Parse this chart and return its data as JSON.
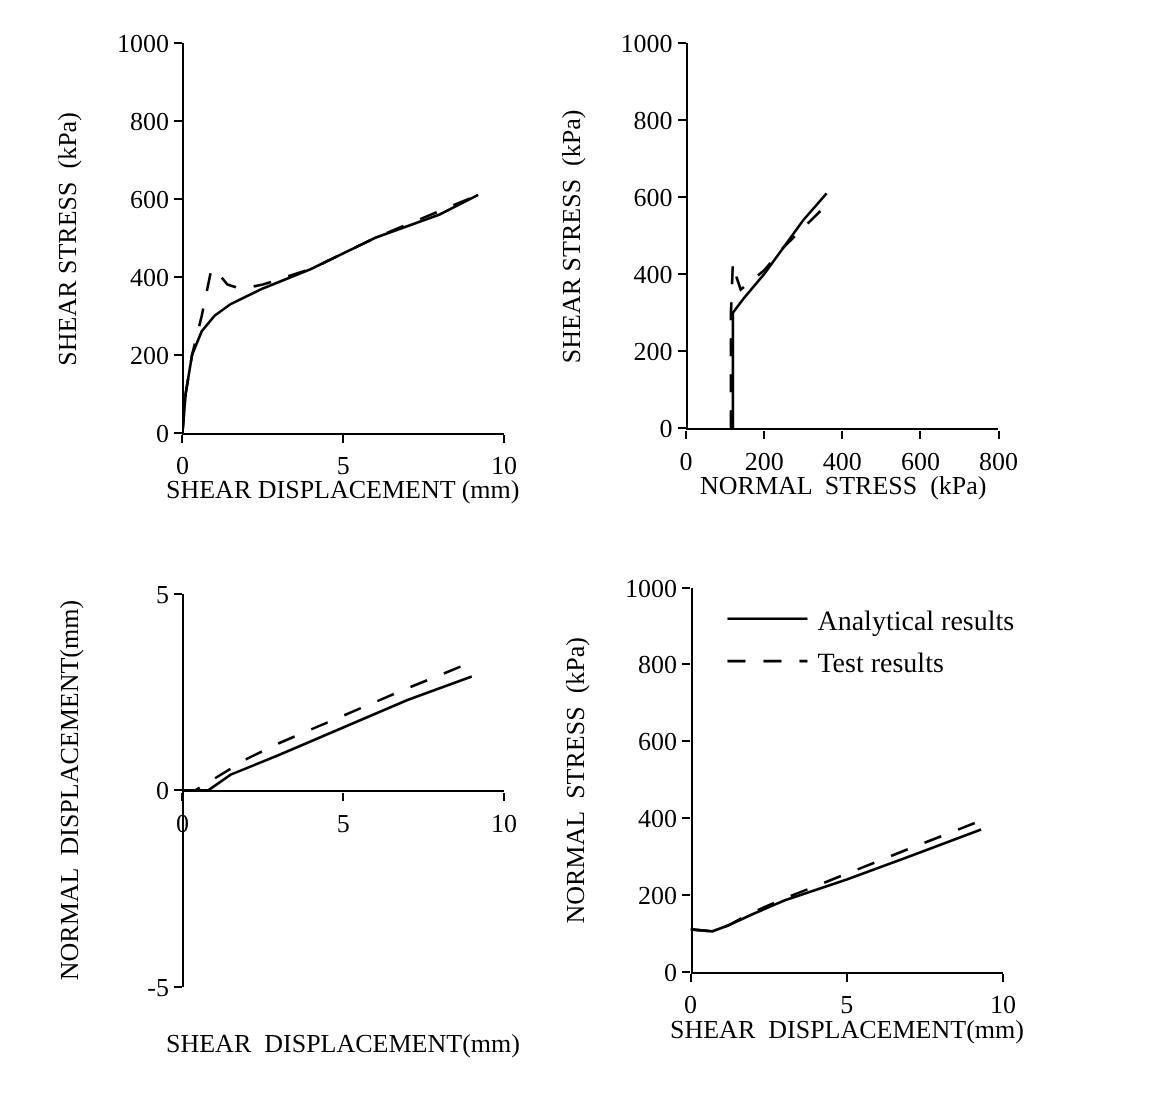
{
  "chart_data": [
    {
      "type": "line",
      "xlabel": "SHEAR DISPLACEMENT (mm)",
      "ylabel": "SHEAR STRESS  (kPa)",
      "xlim": [
        0,
        10
      ],
      "xticks": [
        0,
        5,
        10
      ],
      "ylim": [
        0,
        1000
      ],
      "yticks": [
        0,
        200,
        400,
        600,
        800,
        1000
      ],
      "legend": false,
      "series": [
        {
          "color": "#000000",
          "line_style": "solid",
          "x": [
            0,
            0.1,
            0.3,
            0.6,
            1,
            1.5,
            2.5,
            4,
            6,
            8,
            9.2
          ],
          "values": [
            0,
            100,
            200,
            260,
            300,
            330,
            370,
            420,
            500,
            560,
            610
          ]
        },
        {
          "color": "#000000",
          "line_style": "dashed",
          "x": [
            0,
            0.1,
            0.3,
            0.6,
            0.9,
            1.1,
            1.4,
            1.8,
            2.2,
            2.5,
            4,
            6,
            9.2
          ],
          "values": [
            0,
            100,
            200,
            300,
            420,
            410,
            380,
            370,
            375,
            380,
            420,
            500,
            610
          ]
        }
      ]
    },
    {
      "type": "line",
      "xlabel": "NORMAL  STRESS  (kPa)",
      "ylabel": "SHEAR STRESS  (kPa)",
      "xlim": [
        0,
        800
      ],
      "xticks": [
        0,
        200,
        400,
        600,
        800
      ],
      "ylim": [
        0,
        1000
      ],
      "yticks": [
        0,
        200,
        400,
        600,
        800,
        1000
      ],
      "legend": false,
      "series": [
        {
          "color": "#000000",
          "line_style": "solid",
          "x": [
            120,
            120,
            120,
            150,
            200,
            250,
            300,
            360
          ],
          "values": [
            0,
            200,
            300,
            340,
            400,
            470,
            540,
            610
          ]
        },
        {
          "color": "#000000",
          "line_style": "dashed",
          "x": [
            115,
            115,
            115,
            120,
            130,
            140,
            200,
            250,
            300,
            370
          ],
          "values": [
            0,
            200,
            300,
            430,
            390,
            360,
            410,
            470,
            520,
            590
          ]
        }
      ]
    },
    {
      "type": "line",
      "xlabel": "SHEAR  DISPLACEMENT(mm)",
      "ylabel": "NORMAL  DISPLACEMENT(mm)",
      "xlim": [
        0,
        10
      ],
      "xticks": [
        0,
        5,
        10
      ],
      "ylim": [
        -5,
        5
      ],
      "yticks": [
        -5,
        0,
        5
      ],
      "legend": false,
      "series": [
        {
          "color": "#000000",
          "line_style": "solid",
          "x": [
            0,
            0.8,
            1.5,
            3,
            5,
            7,
            9
          ],
          "values": [
            0,
            0,
            0.4,
            0.9,
            1.6,
            2.3,
            2.9
          ]
        },
        {
          "color": "#000000",
          "line_style": "dashed",
          "x": [
            0,
            0.4,
            1,
            2,
            3,
            5,
            7,
            8.8
          ],
          "values": [
            0,
            0,
            0.3,
            0.8,
            1.2,
            1.9,
            2.6,
            3.2
          ]
        }
      ]
    },
    {
      "type": "line",
      "xlabel": "SHEAR  DISPLACEMENT(mm)",
      "ylabel": "NORMAL  STRESS  (kPa)",
      "xlim": [
        0,
        10
      ],
      "xticks": [
        0,
        5,
        10
      ],
      "ylim": [
        0,
        1000
      ],
      "yticks": [
        0,
        200,
        400,
        600,
        800,
        1000
      ],
      "legend": "top right",
      "series": [
        {
          "name": "Analytical results",
          "color": "#000000",
          "line_style": "solid",
          "x": [
            0,
            0.7,
            1.2,
            2,
            3,
            5,
            7,
            9.3
          ],
          "values": [
            110,
            105,
            120,
            150,
            185,
            240,
            300,
            370
          ]
        },
        {
          "name": "Test results",
          "color": "#000000",
          "line_style": "dashed",
          "x": [
            0,
            0.7,
            1.2,
            2,
            3,
            5,
            7,
            9.2
          ],
          "values": [
            110,
            105,
            120,
            155,
            190,
            255,
            320,
            390
          ]
        }
      ]
    }
  ]
}
